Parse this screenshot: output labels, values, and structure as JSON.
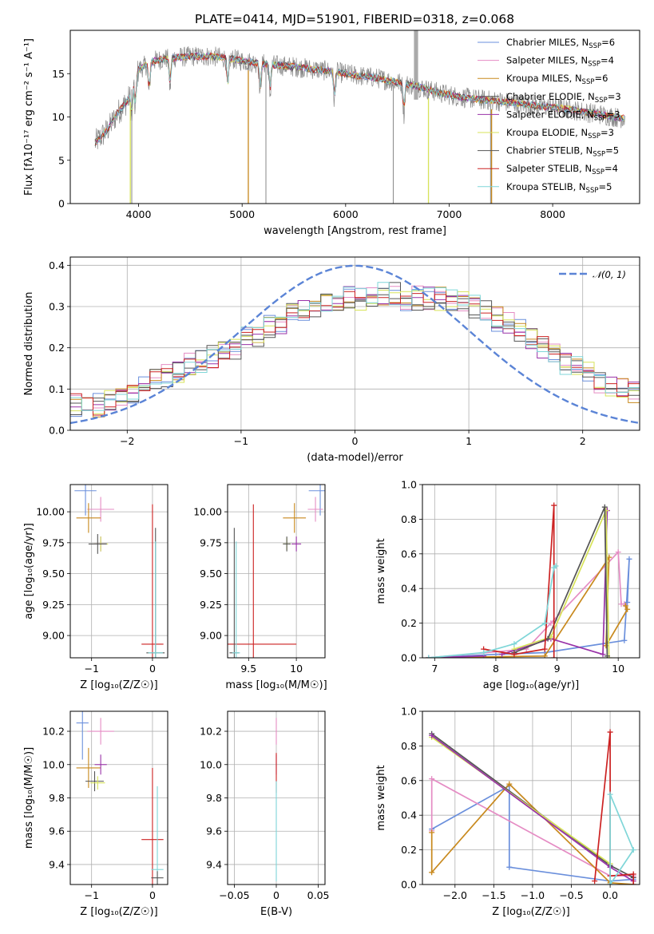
{
  "figure": {
    "title": "PLATE=0414, MJD=51901, FIBERID=0318, z=0.068"
  },
  "colors": [
    "#6a8fdc",
    "#e58cc4",
    "#c8891d",
    "#555555",
    "#9932a8",
    "#d7e35a",
    "#555555",
    "#cc2222",
    "#7fd6d8"
  ],
  "chart_data": [
    {
      "id": "spectrum",
      "type": "line",
      "xlabel": "wavelength [Angstrom, rest frame]",
      "ylabel": "Flux [fλ10⁻¹⁷ erg cm⁻² s⁻¹ A⁻¹]",
      "xlim": [
        3340,
        8840
      ],
      "ylim": [
        0,
        20
      ],
      "xticks": [
        4000,
        5000,
        6000,
        7000,
        8000
      ],
      "yticks": [
        0,
        5,
        10,
        15
      ],
      "legend_position": "top-right",
      "continuum": [
        [
          3580,
          7.0
        ],
        [
          3700,
          8.5
        ],
        [
          3800,
          10.5
        ],
        [
          3900,
          12.0
        ],
        [
          4000,
          15.5
        ],
        [
          4150,
          16.5
        ],
        [
          4300,
          16.8
        ],
        [
          4500,
          17.0
        ],
        [
          4700,
          17.0
        ],
        [
          4900,
          16.7
        ],
        [
          5100,
          16.3
        ],
        [
          5300,
          16.0
        ],
        [
          5500,
          15.8
        ],
        [
          5700,
          15.5
        ],
        [
          5900,
          15.2
        ],
        [
          6100,
          14.8
        ],
        [
          6300,
          14.5
        ],
        [
          6500,
          14.0
        ],
        [
          6700,
          13.5
        ],
        [
          6900,
          12.8
        ],
        [
          7100,
          12.3
        ],
        [
          7300,
          12.0
        ],
        [
          7500,
          11.8
        ],
        [
          7700,
          11.5
        ],
        [
          7900,
          11.2
        ],
        [
          8100,
          11.0
        ],
        [
          8300,
          10.6
        ],
        [
          8500,
          10.2
        ],
        [
          8700,
          9.8
        ]
      ],
      "absorption_lines": [
        3934,
        3969,
        4102,
        4304,
        4861,
        5175,
        5270,
        5892,
        6563
      ],
      "spikes": [
        [
          3934,
          0
        ],
        [
          5060,
          0
        ],
        [
          6460,
          0
        ],
        [
          6800,
          0
        ],
        [
          7400,
          0
        ],
        [
          5230,
          0
        ]
      ],
      "series": [
        {
          "name": "Chabrier MILES, N_SSP=6",
          "label_main": "Chabrier MILES, N",
          "label_tail": "=6",
          "color": "#6a8fdc"
        },
        {
          "name": "Salpeter MILES, N_SSP=4",
          "label_main": "Salpeter MILES, N",
          "label_tail": "=4",
          "color": "#e58cc4"
        },
        {
          "name": "Kroupa MILES, N_SSP=6",
          "label_main": "Kroupa MILES, N",
          "label_tail": "=6",
          "color": "#c8891d"
        },
        {
          "name": "Chabrier ELODIE, N_SSP=3",
          "label_main": "Chabrier ELODIE, N",
          "label_tail": "=3",
          "color": "#555555"
        },
        {
          "name": "Salpeter ELODIE, N_SSP=3",
          "label_main": "Salpeter ELODIE, N",
          "label_tail": "=3",
          "color": "#9932a8"
        },
        {
          "name": "Kroupa ELODIE, N_SSP=3",
          "label_main": "Kroupa ELODIE, N",
          "label_tail": "=3",
          "color": "#d7e35a"
        },
        {
          "name": "Chabrier STELIB, N_SSP=5",
          "label_main": "Chabrier STELIB, N",
          "label_tail": "=5",
          "color": "#555555"
        },
        {
          "name": "Salpeter STELIB, N_SSP=4",
          "label_main": "Salpeter STELIB, N",
          "label_tail": "=4",
          "color": "#cc2222"
        },
        {
          "name": "Kroupa STELIB, N_SSP=5",
          "label_main": "Kroupa STELIB, N",
          "label_tail": "=5",
          "color": "#7fd6d8"
        }
      ],
      "legend_sub": "SSP"
    },
    {
      "id": "residuals",
      "type": "histogram",
      "xlabel": "(data-model)/error",
      "ylabel": "Normed distribution",
      "xlim": [
        -2.5,
        2.5
      ],
      "ylim": [
        0,
        0.42
      ],
      "xticks": [
        -2,
        -1,
        0,
        1,
        2
      ],
      "yticks": [
        0.0,
        0.1,
        0.2,
        0.3,
        0.4
      ],
      "bin_width": 0.1,
      "base_density": [
        0.06,
        0.06,
        0.06,
        0.07,
        0.08,
        0.09,
        0.1,
        0.12,
        0.13,
        0.14,
        0.16,
        0.17,
        0.18,
        0.19,
        0.2,
        0.22,
        0.23,
        0.25,
        0.26,
        0.28,
        0.29,
        0.3,
        0.31,
        0.31,
        0.32,
        0.32,
        0.33,
        0.33,
        0.33,
        0.32,
        0.32,
        0.32,
        0.32,
        0.32,
        0.31,
        0.3,
        0.29,
        0.27,
        0.26,
        0.24,
        0.22,
        0.2,
        0.18,
        0.16,
        0.15,
        0.14,
        0.12,
        0.11,
        0.1,
        0.09
      ],
      "gaussian_label": "𝒩(0, 1)",
      "gaussian_color": "#5b84d6",
      "legend_position": "top-right"
    },
    {
      "id": "age-vs-Z",
      "type": "errorbar",
      "xlabel": "Z [log₁₀(Z/Z☉)]",
      "ylabel": "age  [log₁₀(age/yr)]",
      "xlim": [
        -1.35,
        0.25
      ],
      "ylim": [
        8.82,
        10.22
      ],
      "xticks": [
        -1,
        0
      ],
      "yticks": [
        9.0,
        9.25,
        9.5,
        9.75,
        10.0
      ],
      "points": [
        {
          "x": -1.1,
          "y": 10.17,
          "xerr": 0.18,
          "yerr": 0.2,
          "color": "#6a8fdc"
        },
        {
          "x": -0.85,
          "y": 10.02,
          "xerr": 0.22,
          "yerr": 0.1,
          "color": "#e58cc4"
        },
        {
          "x": -1.05,
          "y": 9.95,
          "xerr": 0.2,
          "yerr": 0.12,
          "color": "#c8891d"
        },
        {
          "x": -0.85,
          "y": 9.74,
          "xerr": 0.1,
          "yerr": 0.06,
          "color": "#9932a8"
        },
        {
          "x": -0.85,
          "y": 9.74,
          "xerr": 0.12,
          "yerr": 0.06,
          "color": "#d7e35a"
        },
        {
          "x": -0.9,
          "y": 9.74,
          "xerr": 0.15,
          "yerr": 0.08,
          "color": "#555555"
        },
        {
          "x": 0.0,
          "y": 8.93,
          "xerr": 0.18,
          "yerr": 1.13,
          "color": "#cc2222"
        },
        {
          "x": 0.05,
          "y": 8.86,
          "xerr": 0.15,
          "yerr": 1.01,
          "color": "#555555"
        },
        {
          "x": 0.05,
          "y": 8.86,
          "xerr": 0.12,
          "yerr": 0.9,
          "color": "#7fd6d8"
        }
      ]
    },
    {
      "id": "age-vs-mass",
      "type": "errorbar",
      "xlabel": "mass [log₁₀(M/M☉)]",
      "ylabel": "",
      "xlim": [
        9.28,
        10.3
      ],
      "ylim": [
        8.82,
        10.22
      ],
      "xticks": [
        9.5,
        10.0
      ],
      "yticks": [
        9.0,
        9.25,
        9.5,
        9.75,
        10.0
      ],
      "points": [
        {
          "x": 10.25,
          "y": 10.17,
          "xerr": 0.12,
          "yerr": 0.2,
          "color": "#6a8fdc"
        },
        {
          "x": 10.2,
          "y": 10.02,
          "xerr": 0.08,
          "yerr": 0.1,
          "color": "#e58cc4"
        },
        {
          "x": 9.98,
          "y": 9.95,
          "xerr": 0.12,
          "yerr": 0.12,
          "color": "#c8891d"
        },
        {
          "x": 10.0,
          "y": 9.74,
          "xerr": 0.05,
          "yerr": 0.06,
          "color": "#9932a8"
        },
        {
          "x": 9.9,
          "y": 9.74,
          "xerr": 0.04,
          "yerr": 0.05,
          "color": "#d7e35a"
        },
        {
          "x": 9.9,
          "y": 9.74,
          "xerr": 0.04,
          "yerr": 0.06,
          "color": "#555555"
        },
        {
          "x": 9.55,
          "y": 8.93,
          "xerr": 0.45,
          "yerr": 1.13,
          "color": "#cc2222"
        },
        {
          "x": 9.35,
          "y": 8.86,
          "xerr": 0.05,
          "yerr": 1.01,
          "color": "#555555"
        },
        {
          "x": 9.37,
          "y": 8.86,
          "xerr": 0.04,
          "yerr": 0.9,
          "color": "#7fd6d8"
        }
      ]
    },
    {
      "id": "weight-vs-age",
      "type": "line",
      "xlabel": "age  [log₁₀(age/yr)]",
      "ylabel": "mass weight",
      "xlim": [
        6.8,
        10.35
      ],
      "ylim": [
        0,
        1.0
      ],
      "xticks": [
        7,
        8,
        9,
        10
      ],
      "yticks": [
        0.0,
        0.2,
        0.4,
        0.6,
        0.8,
        1.0
      ],
      "series": [
        {
          "color": "#6a8fdc",
          "x": [
            6.9,
            8.0,
            8.8,
            10.1,
            10.18,
            10.15
          ],
          "y": [
            0.0,
            0.02,
            0.03,
            0.1,
            0.57,
            0.32
          ]
        },
        {
          "color": "#e58cc4",
          "x": [
            6.9,
            8.5,
            8.9,
            10.0,
            10.05,
            10.1
          ],
          "y": [
            0.0,
            0.05,
            0.2,
            0.61,
            0.31,
            0.31
          ]
        },
        {
          "color": "#c8891d",
          "x": [
            6.9,
            8.8,
            9.85,
            9.8,
            10.15,
            10.12
          ],
          "y": [
            0.0,
            0.01,
            0.58,
            0.07,
            0.28,
            0.3
          ]
        },
        {
          "color": "#9932a8",
          "x": [
            8.1,
            8.9,
            9.75,
            9.82
          ],
          "y": [
            0.02,
            0.11,
            0.02,
            0.85
          ]
        },
        {
          "color": "#d7e35a",
          "x": [
            8.3,
            8.9,
            9.8,
            9.85
          ],
          "y": [
            0.05,
            0.12,
            0.85,
            0.0
          ]
        },
        {
          "color": "#555555",
          "x": [
            8.3,
            8.85,
            9.78,
            9.82
          ],
          "y": [
            0.03,
            0.11,
            0.87,
            0.01
          ]
        },
        {
          "color": "#cc2222",
          "x": [
            7.8,
            8.3,
            8.8,
            8.95,
            8.95
          ],
          "y": [
            0.05,
            0.02,
            0.05,
            0.88,
            0.0
          ]
        },
        {
          "color": "#9932a8",
          "x": [
            6.9,
            7.8
          ],
          "y": [
            0.0,
            0.01
          ]
        },
        {
          "color": "#7fd6d8",
          "x": [
            6.9,
            7.8,
            8.3,
            8.8,
            8.95,
            8.98
          ],
          "y": [
            0.0,
            0.03,
            0.08,
            0.2,
            0.52,
            0.53
          ]
        }
      ]
    },
    {
      "id": "mass-vs-Z",
      "type": "errorbar",
      "xlabel": "Z [log₁₀(Z/Z☉)]",
      "ylabel": "mass [log₁₀(M/M☉)]",
      "xlim": [
        -1.35,
        0.25
      ],
      "ylim": [
        9.28,
        10.32
      ],
      "xticks": [
        -1,
        0
      ],
      "yticks": [
        9.4,
        9.6,
        9.8,
        10.0,
        10.2
      ],
      "points": [
        {
          "x": -1.15,
          "y": 10.25,
          "xerr": 0.1,
          "yerr": 0.22,
          "color": "#6a8fdc"
        },
        {
          "x": -0.85,
          "y": 10.2,
          "xerr": 0.22,
          "yerr": 0.08,
          "color": "#e58cc4"
        },
        {
          "x": -1.05,
          "y": 9.98,
          "xerr": 0.2,
          "yerr": 0.12,
          "color": "#c8891d"
        },
        {
          "x": -0.85,
          "y": 10.0,
          "xerr": 0.1,
          "yerr": 0.06,
          "color": "#9932a8"
        },
        {
          "x": -0.95,
          "y": 9.9,
          "xerr": 0.15,
          "yerr": 0.06,
          "color": "#555555"
        },
        {
          "x": -0.9,
          "y": 9.89,
          "xerr": 0.12,
          "yerr": 0.04,
          "color": "#d7e35a"
        },
        {
          "x": 0.0,
          "y": 9.55,
          "xerr": 0.18,
          "yerr": 0.43,
          "color": "#cc2222"
        },
        {
          "x": 0.08,
          "y": 9.37,
          "xerr": 0.1,
          "yerr": 0.5,
          "color": "#7fd6d8"
        },
        {
          "x": 0.08,
          "y": 9.32,
          "xerr": 0.1,
          "yerr": 0.04,
          "color": "#555555"
        }
      ]
    },
    {
      "id": "mass-vs-EBV",
      "type": "errorbar",
      "xlabel": "E(B-V)",
      "ylabel": "",
      "xlim": [
        -0.058,
        0.058
      ],
      "ylim": [
        9.28,
        10.32
      ],
      "xticks": [
        -0.05,
        0.0,
        0.05
      ],
      "yticks": [
        9.4,
        9.6,
        9.8,
        10.0,
        10.2
      ],
      "points": [
        {
          "x": 0.0,
          "y": 10.2,
          "xerr": 0.0,
          "yerr": 0.08,
          "color": "#e58cc4"
        },
        {
          "x": 0.0,
          "y": 10.0,
          "xerr": 0.0,
          "yerr": 0.06,
          "color": "#9932a8"
        },
        {
          "x": 0.0,
          "y": 9.95,
          "xerr": 0.0,
          "yerr": 0.12,
          "color": "#cc2222"
        },
        {
          "x": 0.0,
          "y": 9.6,
          "xerr": 0.0,
          "yerr": 0.3,
          "color": "#7fd6d8"
        }
      ]
    },
    {
      "id": "weight-vs-Z",
      "type": "line",
      "xlabel": "Z [log₁₀(Z/Z☉)]",
      "ylabel": "mass weight",
      "xlim": [
        -2.42,
        0.38
      ],
      "ylim": [
        0,
        1.0
      ],
      "xticks": [
        -2.0,
        -1.5,
        -1.0,
        -0.5,
        0.0
      ],
      "yticks": [
        0.0,
        0.2,
        0.4,
        0.6,
        0.8,
        1.0
      ],
      "series": [
        {
          "color": "#6a8fdc",
          "x": [
            -2.3,
            -1.3,
            -1.3,
            0.0,
            0.3
          ],
          "y": [
            0.32,
            0.57,
            0.1,
            0.02,
            0.03
          ]
        },
        {
          "color": "#e58cc4",
          "x": [
            -2.3,
            -2.3,
            0.0,
            0.3
          ],
          "y": [
            0.31,
            0.61,
            0.05,
            0.05
          ]
        },
        {
          "color": "#c8891d",
          "x": [
            -2.3,
            -2.3,
            -1.3,
            0.0,
            0.3
          ],
          "y": [
            0.3,
            0.07,
            0.58,
            0.01,
            0.0
          ]
        },
        {
          "color": "#555555",
          "x": [
            -2.3,
            0.0,
            0.3
          ],
          "y": [
            0.87,
            0.11,
            0.04
          ]
        },
        {
          "color": "#d7e35a",
          "x": [
            -2.3,
            0.0
          ],
          "y": [
            0.85,
            0.12
          ]
        },
        {
          "color": "#9932a8",
          "x": [
            -2.3,
            0.0,
            0.3
          ],
          "y": [
            0.86,
            0.1,
            0.02
          ]
        },
        {
          "color": "#cc2222",
          "x": [
            -0.2,
            0.0,
            0.0,
            0.3,
            0.3
          ],
          "y": [
            0.02,
            0.88,
            0.05,
            0.06,
            0.0
          ]
        },
        {
          "color": "#7fd6d8",
          "x": [
            0.0,
            0.0,
            0.3,
            0.0
          ],
          "y": [
            0.0,
            0.52,
            0.2,
            0.0
          ]
        }
      ]
    }
  ]
}
